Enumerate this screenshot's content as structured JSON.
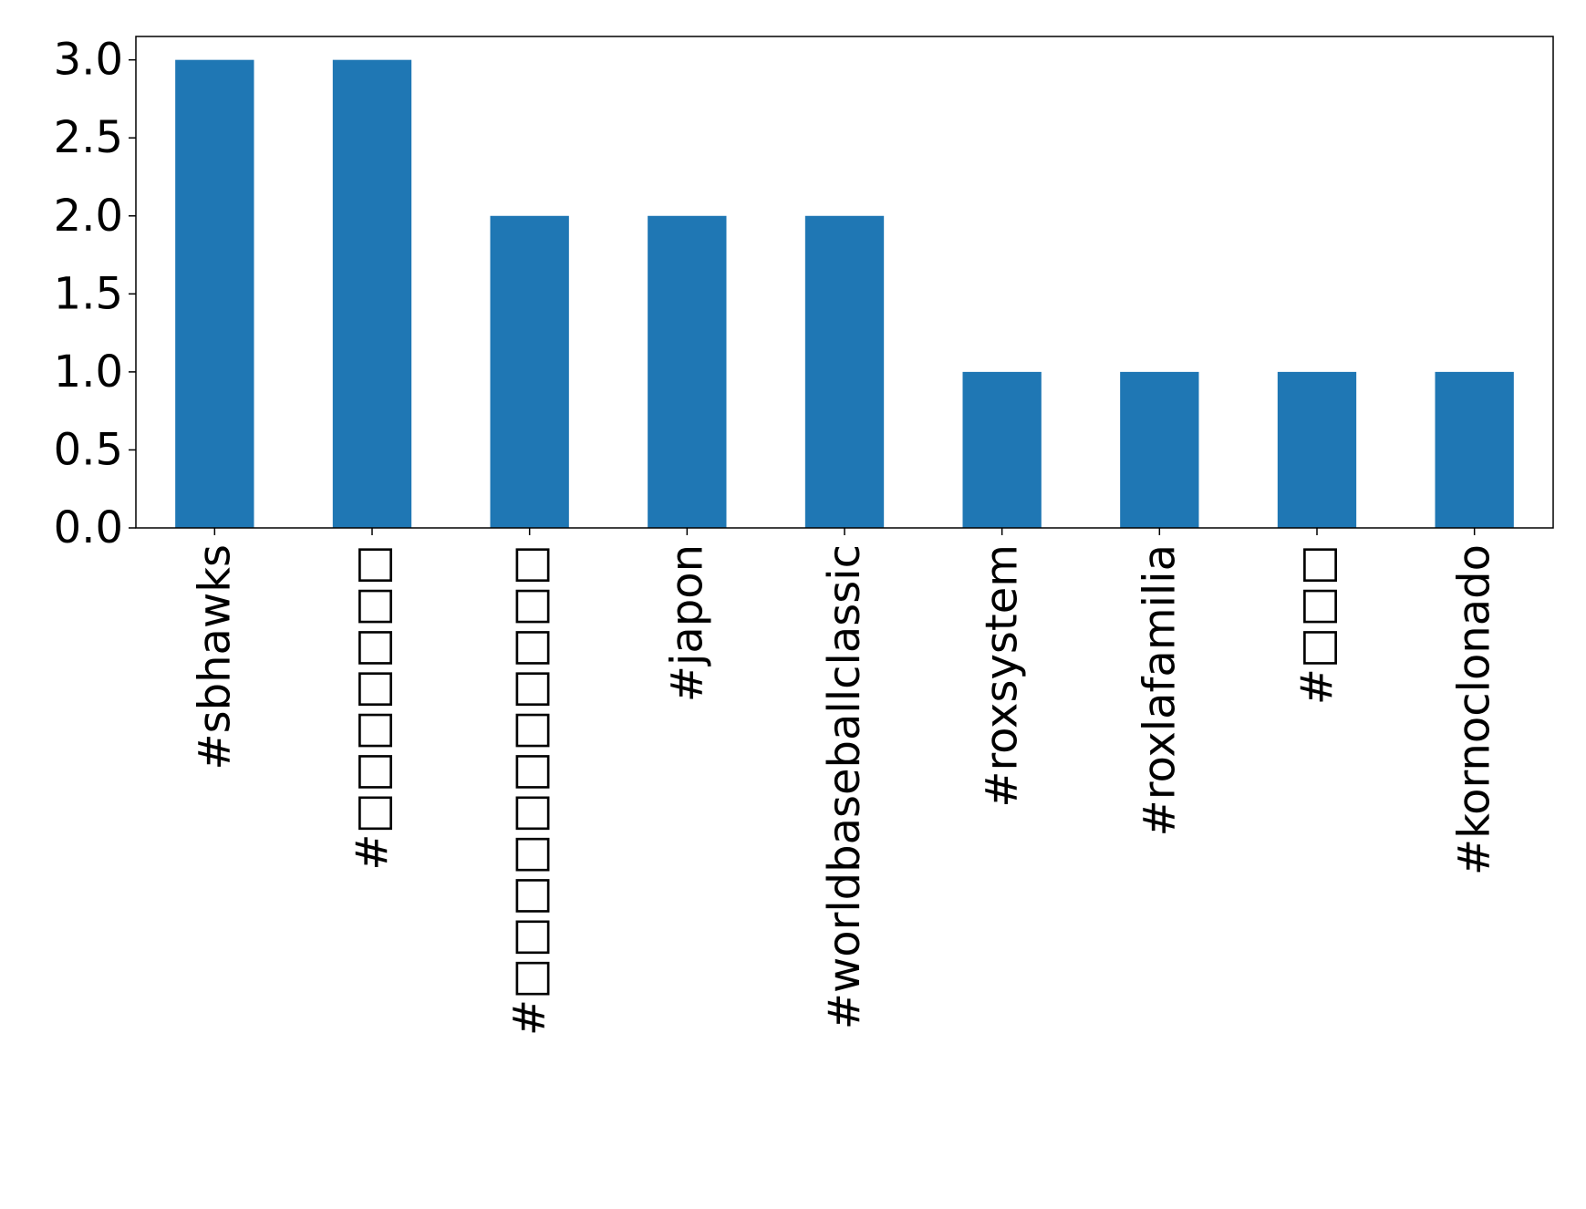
{
  "chart_data": {
    "type": "bar",
    "title": "",
    "xlabel": "",
    "ylabel": "",
    "categories": [
      "#sbhawks",
      "#□□□□□□□",
      "#□□□□□□□□□□□",
      "#japon",
      "#worldbaseballclassic",
      "#roxsystem",
      "#roxlafamilia",
      "#□□□",
      "#kornoclonado"
    ],
    "values": [
      3,
      3,
      2,
      2,
      2,
      1,
      1,
      1,
      1
    ],
    "ylim": [
      0,
      3.15
    ],
    "yticks": [
      "0.0",
      "0.5",
      "1.0",
      "1.5",
      "2.0",
      "2.5",
      "3.0"
    ],
    "grid": false,
    "legend": "none",
    "bar_color": "#1f77b4"
  }
}
